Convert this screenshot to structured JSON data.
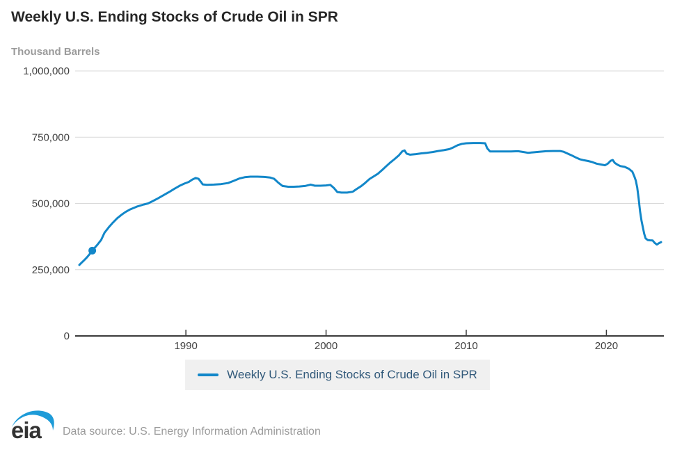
{
  "header": {
    "title": "Weekly U.S. Ending Stocks of Crude Oil in SPR",
    "units_label": "Thousand Barrels"
  },
  "legend": {
    "label": "Weekly U.S. Ending Stocks of Crude Oil in SPR"
  },
  "footer": {
    "logo_text": "eia",
    "source_text": "Data source: U.S. Energy Information Administration"
  },
  "colors": {
    "series": "#1287c9",
    "legend_text": "#31597a",
    "legend_bg": "#f0f0f0",
    "grid": "#d9d9d9",
    "axis": "#3a3a3a",
    "tick_text": "#404040",
    "title_text": "#262626",
    "muted_text": "#9b9b9b",
    "logo_swoosh": "#1d9bd8",
    "logo_letters": "#333333"
  },
  "chart_data": {
    "type": "line",
    "title": "Weekly U.S. Ending Stocks of Crude Oil in SPR",
    "xlabel": "",
    "ylabel": "Thousand Barrels",
    "grid": "horizontal",
    "legend_position": "bottom",
    "x_range": [
      1982.1,
      2024.1
    ],
    "y_range": [
      0,
      1000000
    ],
    "x_ticks": [
      {
        "value": 1990,
        "label": "1990"
      },
      {
        "value": 2000,
        "label": "2000"
      },
      {
        "value": 2010,
        "label": "2010"
      },
      {
        "value": 2020,
        "label": "2020"
      }
    ],
    "y_ticks": [
      {
        "value": 0,
        "label": "0"
      },
      {
        "value": 250000,
        "label": "250,000"
      },
      {
        "value": 500000,
        "label": "500,000"
      },
      {
        "value": 750000,
        "label": "750,000"
      },
      {
        "value": 1000000,
        "label": "1,000,000"
      }
    ],
    "marker_point": {
      "x": 1983.32,
      "y": 322000
    },
    "series": [
      {
        "name": "Weekly U.S. Ending Stocks of Crude Oil in SPR",
        "points": [
          [
            1982.4,
            268000
          ],
          [
            1982.55,
            276000
          ],
          [
            1982.75,
            286000
          ],
          [
            1982.95,
            297000
          ],
          [
            1983.15,
            310000
          ],
          [
            1983.32,
            322000
          ],
          [
            1983.5,
            333000
          ],
          [
            1983.7,
            345000
          ],
          [
            1983.95,
            362000
          ],
          [
            1984.2,
            390000
          ],
          [
            1984.5,
            410000
          ],
          [
            1984.8,
            428000
          ],
          [
            1985.1,
            444000
          ],
          [
            1985.4,
            457000
          ],
          [
            1985.7,
            468000
          ],
          [
            1986.0,
            477000
          ],
          [
            1986.5,
            488000
          ],
          [
            1987.0,
            496000
          ],
          [
            1987.3,
            500000
          ],
          [
            1987.6,
            508000
          ],
          [
            1988.0,
            519000
          ],
          [
            1988.4,
            531000
          ],
          [
            1988.8,
            543000
          ],
          [
            1989.2,
            556000
          ],
          [
            1989.6,
            568000
          ],
          [
            1989.9,
            575000
          ],
          [
            1990.2,
            581000
          ],
          [
            1990.45,
            590000
          ],
          [
            1990.7,
            596000
          ],
          [
            1990.9,
            593000
          ],
          [
            1991.05,
            583000
          ],
          [
            1991.2,
            572000
          ],
          [
            1991.5,
            570000
          ],
          [
            1992.0,
            571000
          ],
          [
            1992.5,
            573000
          ],
          [
            1993.0,
            577000
          ],
          [
            1993.4,
            585000
          ],
          [
            1993.8,
            594000
          ],
          [
            1994.2,
            599000
          ],
          [
            1994.6,
            601000
          ],
          [
            1995.1,
            601000
          ],
          [
            1995.6,
            600000
          ],
          [
            1996.0,
            598000
          ],
          [
            1996.3,
            593000
          ],
          [
            1996.6,
            578000
          ],
          [
            1996.9,
            566000
          ],
          [
            1997.3,
            563000
          ],
          [
            1997.7,
            563000
          ],
          [
            1998.1,
            564000
          ],
          [
            1998.5,
            566000
          ],
          [
            1998.9,
            571000
          ],
          [
            1999.2,
            567000
          ],
          [
            1999.6,
            567000
          ],
          [
            2000.0,
            568000
          ],
          [
            2000.3,
            570000
          ],
          [
            2000.55,
            559000
          ],
          [
            2000.8,
            543000
          ],
          [
            2001.1,
            541000
          ],
          [
            2001.5,
            541000
          ],
          [
            2001.9,
            544000
          ],
          [
            2002.2,
            555000
          ],
          [
            2002.5,
            565000
          ],
          [
            2002.8,
            578000
          ],
          [
            2003.1,
            592000
          ],
          [
            2003.4,
            602000
          ],
          [
            2003.7,
            612000
          ],
          [
            2004.0,
            626000
          ],
          [
            2004.3,
            641000
          ],
          [
            2004.6,
            655000
          ],
          [
            2004.9,
            668000
          ],
          [
            2005.2,
            682000
          ],
          [
            2005.45,
            697000
          ],
          [
            2005.6,
            700000
          ],
          [
            2005.75,
            688000
          ],
          [
            2006.0,
            684000
          ],
          [
            2006.4,
            686000
          ],
          [
            2006.8,
            689000
          ],
          [
            2007.2,
            691000
          ],
          [
            2007.6,
            694000
          ],
          [
            2008.0,
            698000
          ],
          [
            2008.4,
            701000
          ],
          [
            2008.8,
            705000
          ],
          [
            2009.1,
            712000
          ],
          [
            2009.4,
            720000
          ],
          [
            2009.7,
            725000
          ],
          [
            2010.0,
            727000
          ],
          [
            2010.5,
            728000
          ],
          [
            2011.0,
            728000
          ],
          [
            2011.35,
            727000
          ],
          [
            2011.5,
            708000
          ],
          [
            2011.7,
            696000
          ],
          [
            2012.2,
            696000
          ],
          [
            2012.7,
            696000
          ],
          [
            2013.2,
            696000
          ],
          [
            2013.7,
            697000
          ],
          [
            2014.1,
            694000
          ],
          [
            2014.4,
            691000
          ],
          [
            2014.8,
            693000
          ],
          [
            2015.2,
            695000
          ],
          [
            2015.7,
            697000
          ],
          [
            2016.2,
            698000
          ],
          [
            2016.7,
            698000
          ],
          [
            2016.95,
            695000
          ],
          [
            2017.2,
            689000
          ],
          [
            2017.5,
            682000
          ],
          [
            2017.8,
            674000
          ],
          [
            2018.1,
            667000
          ],
          [
            2018.4,
            663000
          ],
          [
            2018.7,
            660000
          ],
          [
            2019.0,
            656000
          ],
          [
            2019.3,
            650000
          ],
          [
            2019.6,
            647000
          ],
          [
            2019.9,
            644000
          ],
          [
            2020.1,
            650000
          ],
          [
            2020.3,
            661000
          ],
          [
            2020.45,
            664000
          ],
          [
            2020.6,
            653000
          ],
          [
            2020.8,
            646000
          ],
          [
            2021.0,
            641000
          ],
          [
            2021.3,
            638000
          ],
          [
            2021.6,
            631000
          ],
          [
            2021.85,
            620000
          ],
          [
            2022.0,
            601000
          ],
          [
            2022.1,
            586000
          ],
          [
            2022.2,
            560000
          ],
          [
            2022.3,
            520000
          ],
          [
            2022.4,
            470000
          ],
          [
            2022.5,
            436000
          ],
          [
            2022.6,
            410000
          ],
          [
            2022.7,
            385000
          ],
          [
            2022.8,
            368000
          ],
          [
            2022.95,
            362000
          ],
          [
            2023.1,
            361000
          ],
          [
            2023.3,
            360000
          ],
          [
            2023.45,
            351000
          ],
          [
            2023.6,
            345000
          ],
          [
            2023.75,
            350000
          ],
          [
            2023.9,
            354000
          ]
        ]
      }
    ]
  }
}
